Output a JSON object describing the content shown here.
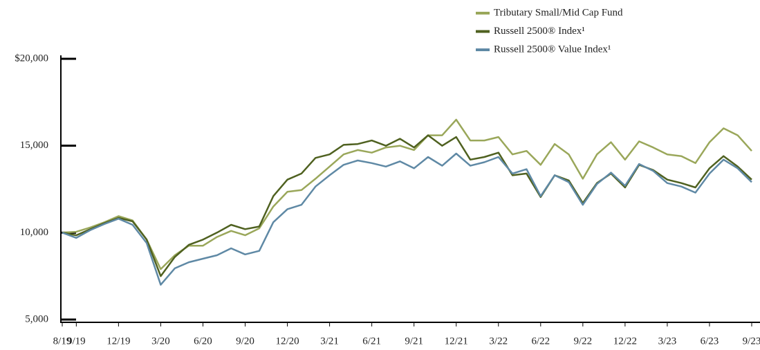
{
  "chart_data": {
    "type": "line",
    "categories": [
      "8/19",
      "9/19",
      null,
      null,
      "12/19",
      null,
      null,
      "3/20",
      null,
      null,
      "6/20",
      null,
      null,
      "9/20",
      null,
      null,
      "12/20",
      null,
      null,
      "3/21",
      null,
      null,
      "6/21",
      null,
      null,
      "9/21",
      null,
      null,
      "12/21",
      null,
      null,
      "3/22",
      null,
      null,
      "6/22",
      null,
      null,
      "9/22",
      null,
      null,
      "12/22",
      null,
      null,
      "3/23",
      null,
      null,
      "6/23",
      null,
      null,
      "9/23"
    ],
    "series": [
      {
        "name": "Tributary Small/Mid Cap Fund",
        "color": "#9aa75a",
        "values": [
          10000,
          10050,
          10300,
          10600,
          10950,
          10700,
          9600,
          7900,
          8700,
          9250,
          9250,
          9750,
          10100,
          9850,
          10250,
          11500,
          12350,
          12450,
          13100,
          13800,
          14500,
          14750,
          14600,
          14900,
          15000,
          14750,
          15600,
          15600,
          16500,
          15300,
          15300,
          15500,
          14500,
          14700,
          13900,
          15100,
          14500,
          13100,
          14500,
          15200,
          14200,
          15250,
          14900,
          14500,
          14400,
          14000,
          15200,
          16000,
          15600,
          14700
        ]
      },
      {
        "name": "Russell 2500® Index¹",
        "color": "#4f6120",
        "values": [
          10000,
          9850,
          10200,
          10550,
          10850,
          10650,
          9600,
          7500,
          8600,
          9300,
          9600,
          10000,
          10450,
          10200,
          10350,
          12100,
          13050,
          13400,
          14300,
          14500,
          15050,
          15100,
          15300,
          15000,
          15400,
          14900,
          15600,
          15000,
          15500,
          14200,
          14350,
          14600,
          13300,
          13400,
          12050,
          13300,
          13000,
          11700,
          12850,
          13400,
          12600,
          13900,
          13600,
          13050,
          12850,
          12600,
          13700,
          14400,
          13800,
          13050
        ]
      },
      {
        "name": "Russell 2500® Value Index¹",
        "color": "#5f89a5",
        "values": [
          10000,
          9700,
          10150,
          10500,
          10800,
          10450,
          9400,
          7000,
          7950,
          8300,
          8500,
          8700,
          9100,
          8750,
          8950,
          10600,
          11350,
          11600,
          12650,
          13300,
          13900,
          14150,
          14000,
          13800,
          14100,
          13700,
          14350,
          13850,
          14550,
          13850,
          14050,
          14350,
          13400,
          13650,
          12100,
          13300,
          12900,
          11600,
          12800,
          13450,
          12700,
          13950,
          13550,
          12850,
          12650,
          12300,
          13400,
          14200,
          13700,
          12900
        ]
      }
    ],
    "ylim": [
      5000,
      20000
    ],
    "yticks": [
      {
        "value": 5000,
        "label": "5,000"
      },
      {
        "value": 10000,
        "label": "10,000"
      },
      {
        "value": 15000,
        "label": "15,000"
      },
      {
        "value": 20000,
        "label": "$20,000"
      }
    ],
    "legend": "top-right"
  }
}
